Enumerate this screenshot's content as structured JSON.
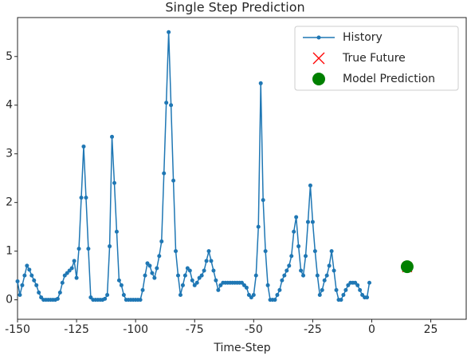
{
  "chart_data": {
    "type": "line",
    "title": "Single Step Prediction",
    "x_label": "Time-Step",
    "series": [
      {
        "name": "History",
        "color": "#1f77b4",
        "marker": ".",
        "x": [
          -150,
          -149,
          -148,
          -147,
          -146,
          -145,
          -144,
          -143,
          -142,
          -141,
          -140,
          -139,
          -138,
          -137,
          -136,
          -135,
          -134,
          -133,
          -132,
          -131,
          -130,
          -129,
          -128,
          -127,
          -126,
          -125,
          -124,
          -123,
          -122,
          -121,
          -120,
          -119,
          -118,
          -117,
          -116,
          -115,
          -114,
          -113,
          -112,
          -111,
          -110,
          -109,
          -108,
          -107,
          -106,
          -105,
          -104,
          -103,
          -102,
          -101,
          -100,
          -99,
          -98,
          -97,
          -96,
          -95,
          -94,
          -93,
          -92,
          -91,
          -90,
          -89,
          -88,
          -87,
          -86,
          -85,
          -84,
          -83,
          -82,
          -81,
          -80,
          -79,
          -78,
          -77,
          -76,
          -75,
          -74,
          -73,
          -72,
          -71,
          -70,
          -69,
          -68,
          -67,
          -66,
          -65,
          -64,
          -63,
          -62,
          -61,
          -60,
          -59,
          -58,
          -57,
          -56,
          -55,
          -54,
          -53,
          -52,
          -51,
          -50,
          -49,
          -48,
          -47,
          -46,
          -45,
          -44,
          -43,
          -42,
          -41,
          -40,
          -39,
          -38,
          -37,
          -36,
          -35,
          -34,
          -33,
          -32,
          -31,
          -30,
          -29,
          -28,
          -27,
          -26,
          -25,
          -24,
          -23,
          -22,
          -21,
          -20,
          -19,
          -18,
          -17,
          -16,
          -15,
          -14,
          -13,
          -12,
          -11,
          -10,
          -9,
          -8,
          -7,
          -6,
          -5,
          -4,
          -3,
          -2,
          -1
        ],
        "values": [
          0.38,
          0.1,
          0.3,
          0.5,
          0.7,
          0.62,
          0.5,
          0.4,
          0.3,
          0.15,
          0.05,
          0,
          0,
          0,
          0,
          0,
          0,
          0.02,
          0.15,
          0.35,
          0.5,
          0.55,
          0.6,
          0.65,
          0.8,
          0.45,
          1.05,
          2.1,
          3.15,
          2.1,
          1.05,
          0.05,
          0,
          0,
          0,
          0,
          0,
          0.02,
          0.1,
          1.1,
          3.35,
          2.4,
          1.4,
          0.4,
          0.3,
          0.1,
          0,
          0,
          0,
          0,
          0,
          0,
          0,
          0.2,
          0.5,
          0.75,
          0.7,
          0.55,
          0.45,
          0.65,
          0.9,
          1.2,
          2.6,
          4.05,
          5.5,
          4.0,
          2.45,
          1.0,
          0.5,
          0.1,
          0.3,
          0.5,
          0.65,
          0.6,
          0.4,
          0.3,
          0.35,
          0.45,
          0.5,
          0.6,
          0.8,
          1.0,
          0.8,
          0.6,
          0.4,
          0.2,
          0.3,
          0.35,
          0.35,
          0.35,
          0.35,
          0.35,
          0.35,
          0.35,
          0.35,
          0.35,
          0.3,
          0.25,
          0.1,
          0.05,
          0.1,
          0.5,
          1.5,
          4.45,
          2.05,
          1.0,
          0.3,
          0,
          0,
          0,
          0.1,
          0.2,
          0.4,
          0.5,
          0.6,
          0.7,
          0.9,
          1.4,
          1.7,
          1.1,
          0.6,
          0.5,
          0.9,
          1.6,
          2.35,
          1.6,
          1.0,
          0.5,
          0.1,
          0.2,
          0.4,
          0.5,
          0.7,
          1.0,
          0.6,
          0.2,
          0,
          0,
          0.1,
          0.2,
          0.3,
          0.35,
          0.35,
          0.35,
          0.3,
          0.2,
          0.1,
          0.05,
          0.05,
          0.35
        ]
      },
      {
        "name": "True Future",
        "color": "#ff0000",
        "marker": "x",
        "x": [
          15
        ],
        "values": [
          0.67
        ]
      },
      {
        "name": "Model Prediction",
        "color": "#008000",
        "marker": "o",
        "x": [
          15
        ],
        "values": [
          0.68
        ]
      }
    ],
    "xlim": [
      -150,
      40
    ],
    "xticks": [
      -150,
      -125,
      -100,
      -75,
      -50,
      -25,
      0,
      25
    ],
    "ylim": [
      -0.4,
      5.8
    ],
    "yticks": [
      0,
      1,
      2,
      3,
      4,
      5
    ],
    "legend": "upper right"
  }
}
